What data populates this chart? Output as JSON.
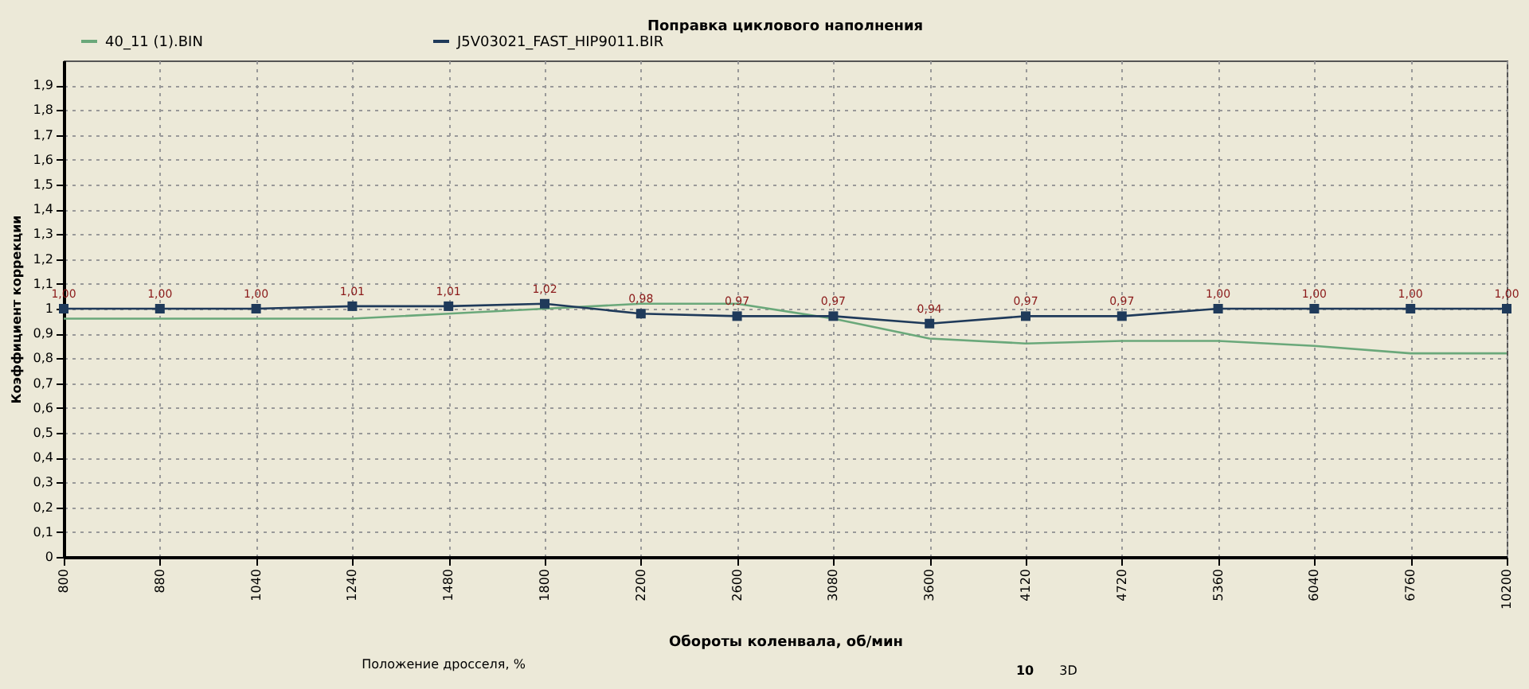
{
  "chart_data": {
    "type": "line",
    "title": "Поправка циклового наполнения",
    "xlabel": "Обороты коленвала, об/мин",
    "ylabel": "Коэффициент коррекции",
    "categories": [
      "800",
      "880",
      "1040",
      "1240",
      "1480",
      "1800",
      "2200",
      "2600",
      "3080",
      "3600",
      "4120",
      "4720",
      "5360",
      "6040",
      "6760",
      "10200"
    ],
    "series": [
      {
        "name": "40_11 (1).BIN",
        "color": "#6aa87a",
        "marker": "none",
        "values": [
          0.96,
          0.96,
          0.96,
          0.96,
          0.98,
          1.0,
          1.02,
          1.02,
          0.96,
          0.88,
          0.86,
          0.87,
          0.87,
          0.85,
          0.82,
          0.82
        ]
      },
      {
        "name": "J5V03021_FAST_HIP9011.BIR",
        "color": "#1f3a5a",
        "marker": "square",
        "values": [
          1.0,
          1.0,
          1.0,
          1.01,
          1.01,
          1.02,
          0.98,
          0.97,
          0.97,
          0.94,
          0.97,
          0.97,
          1.0,
          1.0,
          1.0,
          1.0
        ],
        "value_labels": [
          "1,00",
          "1,00",
          "1,00",
          "1,01",
          "1,01",
          "1,02",
          "0,98",
          "0,97",
          "0,97",
          "0,94",
          "0,97",
          "0,97",
          "1,00",
          "1,00",
          "1,00",
          "1,00"
        ]
      }
    ],
    "ylim": [
      0,
      2
    ],
    "yticks": [
      0,
      {
        "value": 0.1,
        "label": "0,1"
      },
      {
        "value": 0.2,
        "label": "0,2"
      },
      {
        "value": 0.3,
        "label": "0,3"
      },
      {
        "value": 0.4,
        "label": "0,4"
      },
      {
        "value": 0.5,
        "label": "0,5"
      },
      {
        "value": 0.6,
        "label": "0,6"
      },
      {
        "value": 0.7,
        "label": "0,7"
      },
      {
        "value": 0.8,
        "label": "0,8"
      },
      {
        "value": 0.9,
        "label": "0,9"
      },
      1,
      {
        "value": 1.1,
        "label": "1,1"
      },
      {
        "value": 1.2,
        "label": "1,2"
      },
      {
        "value": 1.3,
        "label": "1,3"
      },
      {
        "value": 1.4,
        "label": "1,4"
      },
      {
        "value": 1.5,
        "label": "1,5"
      },
      {
        "value": 1.6,
        "label": "1,6"
      },
      {
        "value": 1.7,
        "label": "1,7"
      },
      {
        "value": 1.8,
        "label": "1,8"
      },
      {
        "value": 1.9,
        "label": "1,9"
      }
    ],
    "grid": true,
    "legend": "top left",
    "line_style": "solid",
    "annotations": [
      "Положение дросселя, %",
      "10",
      "3D"
    ]
  }
}
